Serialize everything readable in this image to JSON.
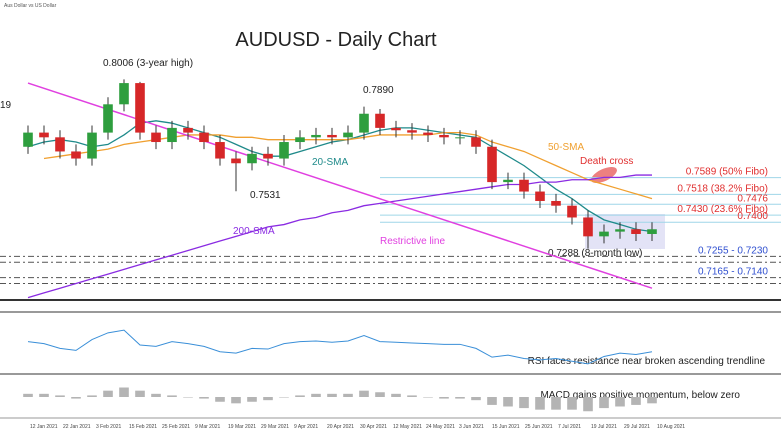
{
  "chart_data": {
    "type": "candlestick",
    "title": "AUDUSD - Daily Chart",
    "subtitle": "Aus Dollar vs US Dollar",
    "ylim": [
      0.707,
      0.83
    ],
    "up_color": "#2e9e3e",
    "down_color": "#d62728",
    "open": [
      0.772,
      0.778,
      0.776,
      0.77,
      0.767,
      0.778,
      0.79,
      0.799,
      0.778,
      0.774,
      0.78,
      0.778,
      0.774,
      0.767,
      0.765,
      0.769,
      0.767,
      0.774,
      0.776,
      0.777,
      0.776,
      0.778,
      0.786,
      0.78,
      0.779,
      0.778,
      0.777,
      0.776,
      0.776,
      0.772,
      0.757,
      0.758,
      0.753,
      0.749,
      0.747,
      0.742,
      0.734,
      0.736,
      0.737,
      0.735
    ],
    "high": [
      0.781,
      0.781,
      0.779,
      0.773,
      0.781,
      0.793,
      0.8006,
      0.7995,
      0.781,
      0.783,
      0.783,
      0.781,
      0.777,
      0.77,
      0.772,
      0.772,
      0.777,
      0.779,
      0.78,
      0.78,
      0.781,
      0.789,
      0.788,
      0.783,
      0.782,
      0.781,
      0.78,
      0.779,
      0.779,
      0.775,
      0.761,
      0.761,
      0.756,
      0.752,
      0.75,
      0.745,
      0.739,
      0.74,
      0.74,
      0.74
    ],
    "low": [
      0.769,
      0.773,
      0.767,
      0.764,
      0.764,
      0.775,
      0.787,
      0.775,
      0.771,
      0.771,
      0.775,
      0.771,
      0.764,
      0.7531,
      0.762,
      0.764,
      0.764,
      0.771,
      0.773,
      0.773,
      0.773,
      0.775,
      0.777,
      0.776,
      0.775,
      0.774,
      0.773,
      0.773,
      0.769,
      0.754,
      0.754,
      0.75,
      0.746,
      0.744,
      0.739,
      0.7288,
      0.731,
      0.733,
      0.732,
      0.732
    ],
    "close": [
      0.778,
      0.776,
      0.77,
      0.767,
      0.778,
      0.79,
      0.799,
      0.778,
      0.774,
      0.78,
      0.778,
      0.774,
      0.767,
      0.765,
      0.769,
      0.767,
      0.774,
      0.776,
      0.777,
      0.776,
      0.778,
      0.786,
      0.78,
      0.779,
      0.778,
      0.777,
      0.776,
      0.776,
      0.772,
      0.757,
      0.758,
      0.753,
      0.749,
      0.747,
      0.742,
      0.734,
      0.736,
      0.737,
      0.735,
      0.737
    ],
    "series": [
      {
        "name": "20-SMA",
        "color": "#1f8a8a",
        "values": [
          0.772,
          0.774,
          0.775,
          0.774,
          0.772,
          0.773,
          0.777,
          0.782,
          0.783,
          0.782,
          0.78,
          0.778,
          0.776,
          0.773,
          0.77,
          0.768,
          0.768,
          0.77,
          0.772,
          0.774,
          0.775,
          0.777,
          0.779,
          0.78,
          0.78,
          0.779,
          0.778,
          0.777,
          0.776,
          0.772,
          0.768,
          0.764,
          0.759,
          0.754,
          0.75,
          0.745,
          0.741,
          0.739,
          0.737,
          0.736
        ]
      },
      {
        "name": "50-SMA",
        "color": "#f0a030",
        "values": [
          null,
          0.767,
          0.768,
          0.769,
          0.77,
          0.771,
          0.773,
          0.774,
          0.775,
          0.776,
          0.777,
          0.777,
          0.777,
          0.776,
          0.776,
          0.775,
          0.775,
          0.775,
          0.775,
          0.775,
          0.775,
          0.776,
          0.777,
          0.777,
          0.777,
          0.777,
          0.778,
          0.778,
          0.777,
          0.774,
          0.772,
          0.77,
          0.767,
          0.764,
          0.761,
          0.758,
          0.756,
          0.754,
          0.752,
          0.75
        ]
      },
      {
        "name": "200-SMA",
        "color": "#8a2be2",
        "values": [
          0.708,
          0.71,
          0.712,
          0.714,
          0.716,
          0.718,
          0.72,
          0.722,
          0.724,
          0.726,
          0.728,
          0.73,
          0.732,
          0.734,
          0.736,
          0.738,
          0.739,
          0.741,
          0.742,
          0.744,
          0.745,
          0.747,
          0.748,
          0.749,
          0.75,
          0.751,
          0.752,
          0.753,
          0.754,
          0.755,
          0.756,
          0.756,
          0.757,
          0.757,
          0.758,
          0.758,
          0.759,
          0.759,
          0.76,
          0.76
        ]
      }
    ],
    "trendline": {
      "name": "Restrictive line",
      "color": "#e040e0",
      "values": [
        0.799,
        0.712
      ]
    },
    "levels": [
      {
        "value": 0.7589,
        "label": "0.7589 (50% Fibo)",
        "color": "#e03030"
      },
      {
        "value": 0.7518,
        "label": "0.7518 (38.2% Fibo)",
        "color": "#e03030"
      },
      {
        "value": 0.7476,
        "label": "0.7476",
        "color": "#e03030"
      },
      {
        "value": 0.743,
        "label": "0.7430 (23.6% Fibo)",
        "color": "#e03030"
      },
      {
        "value": 0.74,
        "label": "0.7400",
        "color": "#e03030"
      },
      {
        "values": [
          0.7255,
          0.723
        ],
        "label": "0.7255 - 0.7230",
        "color": "#3050d0"
      },
      {
        "values": [
          0.7165,
          0.714
        ],
        "label": "0.7165 - 0.7140",
        "color": "#3050d0"
      }
    ],
    "annotations": [
      "0.8006 (3-year high)",
      "0.7890",
      "0.7531",
      "0.7288 (8-month low)",
      "Death cross",
      "19"
    ],
    "date_labels": [
      "12 Jan 2021",
      "22 Jan 2021",
      "3 Feb 2021",
      "15 Feb 2021",
      "25 Feb 2021",
      "9 Mar 2021",
      "19 Mar 2021",
      "29 Mar 2021",
      "9 Apr 2021",
      "20 Apr 2021",
      "30 Apr 2021",
      "12 May 2021",
      "24 May 2021",
      "3 Jun 2021",
      "15 Jun 2021",
      "25 Jun 2021",
      "7 Jul 2021",
      "19 Jul 2021",
      "29 Jul 2021",
      "10 Aug 2021"
    ],
    "rsi": {
      "note": "RSI faces resistance near broken ascending trendline",
      "color": "#3a8fd8",
      "range": [
        10,
        90
      ],
      "values": [
        55,
        52,
        45,
        42,
        58,
        68,
        72,
        50,
        48,
        55,
        52,
        48,
        40,
        38,
        45,
        44,
        52,
        55,
        56,
        54,
        56,
        64,
        55,
        54,
        53,
        52,
        51,
        51,
        45,
        32,
        35,
        30,
        28,
        30,
        26,
        22,
        33,
        38,
        36,
        40
      ]
    },
    "macd": {
      "note": "MACD gains positive momentum, below zero",
      "color": "#b4b4b4",
      "range": [
        -0.012,
        0.012
      ],
      "values": [
        0.002,
        0.002,
        0.001,
        -0.001,
        0.001,
        0.004,
        0.006,
        0.004,
        0.002,
        0.001,
        0.0,
        -0.001,
        -0.003,
        -0.004,
        -0.003,
        -0.002,
        0.0,
        0.001,
        0.002,
        0.002,
        0.002,
        0.004,
        0.003,
        0.002,
        0.001,
        0.0,
        -0.001,
        -0.001,
        -0.002,
        -0.005,
        -0.006,
        -0.007,
        -0.008,
        -0.008,
        -0.008,
        -0.009,
        -0.007,
        -0.006,
        -0.005,
        -0.004
      ]
    }
  }
}
